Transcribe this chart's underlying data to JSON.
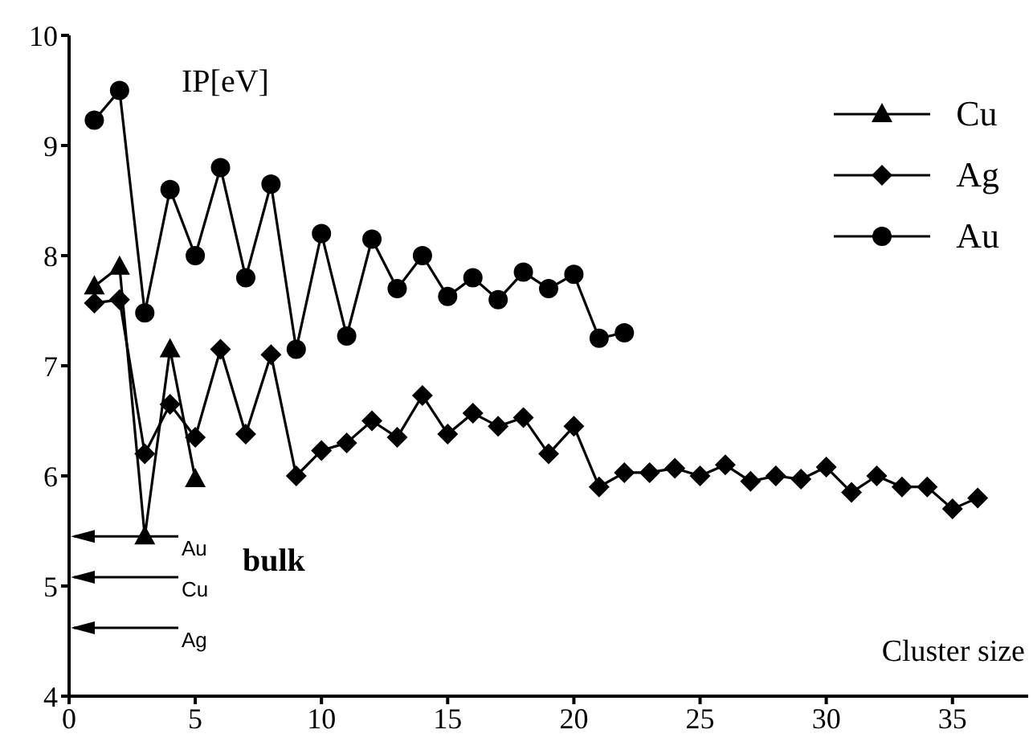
{
  "chart_data": {
    "type": "line",
    "xlabel": "Cluster size",
    "ylabel": "IP[eV]",
    "xlim": [
      0,
      38
    ],
    "xticks": [
      0,
      5,
      10,
      15,
      20,
      25,
      30,
      35
    ],
    "ylim": [
      4,
      10
    ],
    "yticks": [
      4,
      5,
      6,
      7,
      8,
      9,
      10
    ],
    "grid": false,
    "legend": "top right",
    "series": [
      {
        "name": "Cu",
        "color": "#000000",
        "marker": "triangle",
        "x": [
          1,
          2,
          3,
          4,
          5
        ],
        "values": [
          7.72,
          7.9,
          5.45,
          7.15,
          5.97
        ]
      },
      {
        "name": "Ag",
        "color": "#000000",
        "marker": "diamond",
        "x": [
          1,
          2,
          3,
          4,
          5,
          6,
          7,
          8,
          9,
          10,
          11,
          12,
          13,
          14,
          15,
          16,
          17,
          18,
          19,
          20,
          21,
          22,
          23,
          24,
          25,
          26,
          27,
          28,
          29,
          30,
          31,
          32,
          33,
          34,
          35,
          36
        ],
        "values": [
          7.57,
          7.6,
          6.2,
          6.65,
          6.35,
          7.15,
          6.38,
          7.1,
          6.0,
          6.23,
          6.3,
          6.5,
          6.35,
          6.73,
          6.38,
          6.57,
          6.45,
          6.53,
          6.2,
          6.45,
          5.9,
          6.03,
          6.03,
          6.07,
          6.0,
          6.1,
          5.95,
          6.0,
          5.97,
          6.08,
          5.85,
          6.0,
          5.9,
          5.9,
          5.7,
          5.8
        ]
      },
      {
        "name": "Au",
        "color": "#000000",
        "marker": "circle",
        "x": [
          1,
          2,
          3,
          4,
          5,
          6,
          7,
          8,
          9,
          10,
          11,
          12,
          13,
          14,
          15,
          16,
          17,
          18,
          19,
          20,
          21,
          22
        ],
        "values": [
          9.23,
          9.5,
          7.48,
          8.6,
          8.0,
          8.8,
          7.8,
          8.65,
          7.15,
          8.2,
          7.27,
          8.15,
          7.7,
          8.0,
          7.63,
          7.8,
          7.6,
          7.85,
          7.7,
          7.83,
          7.25,
          7.3
        ]
      }
    ],
    "ref_lines": [
      {
        "axis": "y",
        "value": 5.45,
        "label": "Au"
      },
      {
        "axis": "y",
        "value": 5.08,
        "label": "Cu"
      },
      {
        "axis": "y",
        "value": 4.62,
        "label": "Ag"
      }
    ],
    "annotations": [
      "bulk"
    ]
  }
}
